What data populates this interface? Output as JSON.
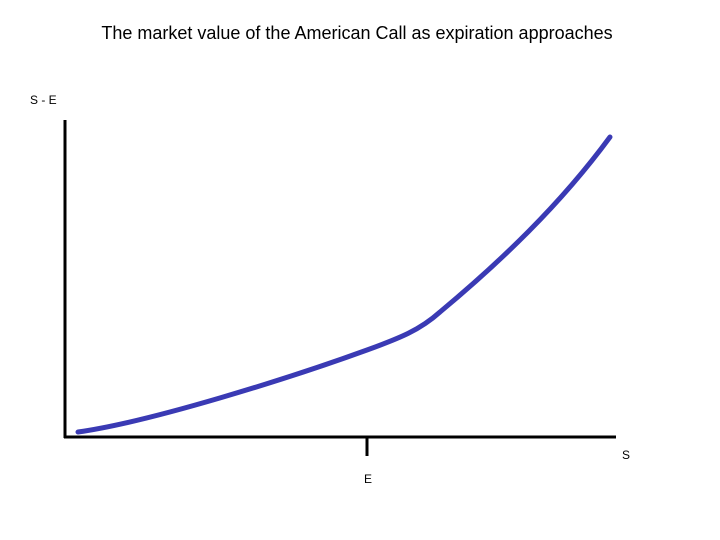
{
  "title": "The market value of the American Call as expiration approaches",
  "y_axis_label": "S - E",
  "x_axis_label": "S",
  "x_marker_label": "E"
}
